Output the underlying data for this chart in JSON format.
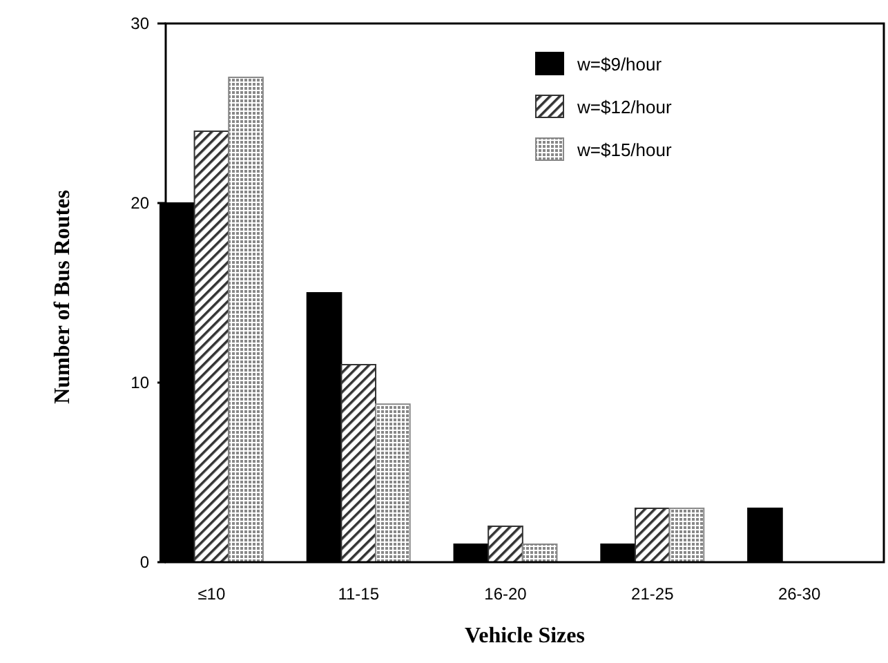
{
  "chart_data": {
    "type": "bar",
    "xlabel": "Vehicle Sizes",
    "ylabel": "Number of Bus Routes",
    "categories": [
      "≤10",
      "11-15",
      "16-20",
      "21-25",
      "26-30"
    ],
    "series": [
      {
        "name": "w=$9/hour",
        "color": "#000000",
        "values": [
          20,
          15,
          1,
          1,
          3
        ]
      },
      {
        "name": "w=$12/hour",
        "color": "#333333",
        "values": [
          24,
          11,
          2,
          3,
          0
        ]
      },
      {
        "name": "w=$15/hour",
        "color": "#888888",
        "values": [
          27,
          8.8,
          1,
          3,
          0
        ]
      }
    ],
    "ylim": [
      0,
      30
    ],
    "yticks": [
      0,
      10,
      20,
      30
    ],
    "legend": "top right",
    "grid": false
  }
}
